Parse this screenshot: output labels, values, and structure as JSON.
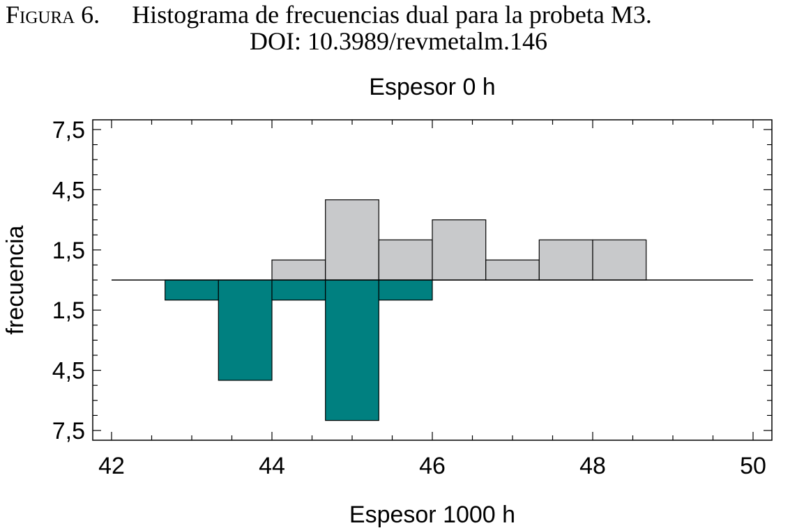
{
  "caption": {
    "label": "Figura 6.",
    "title": "Histograma de frecuencias dual para la probeta M3.",
    "doi": "DOI: 10.3989/revmetalm.146"
  },
  "chart_data": {
    "type": "bar",
    "subtype": "dual-histogram",
    "title": "Espesor 0 h",
    "xlabel": "Espesor 1000 h",
    "ylabel": "frecuencia",
    "xlim": [
      42,
      50
    ],
    "ylim": [
      -7.5,
      7.5
    ],
    "xticks": [
      42,
      44,
      46,
      48,
      50
    ],
    "xtick_labels": [
      "42",
      "44",
      "46",
      "48",
      "50"
    ],
    "yticks": [
      7.5,
      4.5,
      1.5,
      -1.5,
      -4.5,
      -7.5
    ],
    "ytick_labels": [
      "7,5",
      "4,5",
      "1,5",
      "1,5",
      "4,5",
      "7,5"
    ],
    "bin_edges": [
      42,
      42.667,
      43.333,
      44,
      44.667,
      45.333,
      46,
      46.667,
      47.333,
      48,
      48.667,
      49.333,
      50
    ],
    "series": [
      {
        "name": "Espesor 0 h",
        "direction": "up",
        "color": "#c8c9cb",
        "values": [
          0,
          0,
          0,
          1,
          4,
          2,
          3,
          1,
          2,
          2,
          0,
          0
        ]
      },
      {
        "name": "Espesor 1000 h",
        "direction": "down",
        "color": "#008080",
        "values": [
          0,
          1,
          5,
          1,
          7,
          1,
          0,
          0,
          0,
          0,
          0,
          0
        ]
      }
    ],
    "grid": false,
    "legend": "none"
  }
}
